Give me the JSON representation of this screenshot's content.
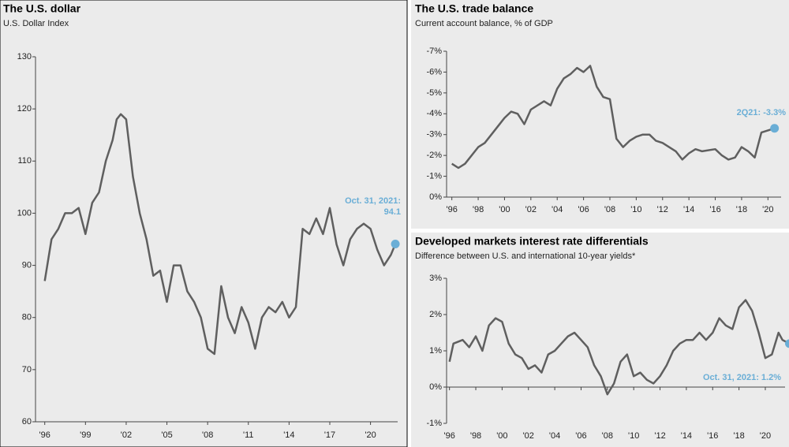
{
  "chart_data": [
    {
      "type": "line",
      "title": "The U.S. dollar",
      "subtitle": "U.S. Dollar Index",
      "x": [
        1996,
        1996.5,
        1997,
        1997.5,
        1998,
        1998.5,
        1999,
        1999.5,
        2000,
        2000.5,
        2001,
        2001.3,
        2001.6,
        2002,
        2002.5,
        2003,
        2003.5,
        2004,
        2004.5,
        2005,
        2005.5,
        2006,
        2006.5,
        2007,
        2007.5,
        2008,
        2008.5,
        2009,
        2009.5,
        2010,
        2010.5,
        2011,
        2011.5,
        2012,
        2012.5,
        2013,
        2013.5,
        2014,
        2014.5,
        2015,
        2015.5,
        2016,
        2016.5,
        2017,
        2017.5,
        2018,
        2018.5,
        2019,
        2019.5,
        2020,
        2020.5,
        2021,
        2021.5,
        2021.83
      ],
      "series": [
        {
          "name": "U.S. Dollar Index",
          "color": "#5f5f5f",
          "values": [
            87,
            95,
            97,
            100,
            100,
            101,
            96,
            102,
            104,
            110,
            114,
            118,
            119,
            118,
            107,
            100,
            95,
            88,
            89,
            83,
            90,
            90,
            85,
            83,
            80,
            74,
            73,
            86,
            80,
            77,
            82,
            79,
            74,
            80,
            82,
            81,
            83,
            80,
            82,
            97,
            96,
            99,
            96,
            101,
            94,
            90,
            95,
            97,
            98,
            97,
            93,
            90,
            92,
            94.1
          ]
        }
      ],
      "annotation": [
        "Oct. 31, 2021:",
        "94.1"
      ],
      "marker_color": "#6aaed6",
      "xlim": [
        1995.9,
        2022
      ],
      "xticks": [
        {
          "value": 1996,
          "label": "'96"
        },
        {
          "value": 1999,
          "label": "'99"
        },
        {
          "value": 2002,
          "label": "'02"
        },
        {
          "value": 2005,
          "label": "'05"
        },
        {
          "value": 2008,
          "label": "'08"
        },
        {
          "value": 2011,
          "label": "'11"
        },
        {
          "value": 2014,
          "label": "'14"
        },
        {
          "value": 2017,
          "label": "'17"
        },
        {
          "value": 2020,
          "label": "'20"
        }
      ],
      "ylim": [
        60,
        130
      ],
      "yticks": [
        60,
        70,
        80,
        90,
        100,
        110,
        120,
        130
      ]
    },
    {
      "type": "line",
      "title": "The U.S. trade balance",
      "subtitle": "Current account balance, % of GDP",
      "x": [
        1996,
        1996.5,
        1997,
        1998,
        1998.5,
        1999,
        2000,
        2000.5,
        2001,
        2001.5,
        2002,
        2003,
        2003.5,
        2004,
        2004.5,
        2005,
        2005.5,
        2006,
        2006.5,
        2007,
        2007.5,
        2008,
        2008.5,
        2009,
        2009.5,
        2010,
        2010.5,
        2011,
        2011.5,
        2012,
        2013,
        2013.5,
        2014,
        2014.5,
        2015,
        2016,
        2016.5,
        2017,
        2017.5,
        2018,
        2018.5,
        2019,
        2019.5,
        2020,
        2020.5
      ],
      "series": [
        {
          "name": "Current account balance",
          "color": "#5f5f5f",
          "values": [
            -1.6,
            -1.4,
            -1.6,
            -2.4,
            -2.6,
            -3.0,
            -3.8,
            -4.1,
            -4.0,
            -3.5,
            -4.2,
            -4.6,
            -4.4,
            -5.2,
            -5.7,
            -5.9,
            -6.2,
            -6.0,
            -6.3,
            -5.3,
            -4.8,
            -4.7,
            -2.8,
            -2.4,
            -2.7,
            -2.9,
            -3.0,
            -3.0,
            -2.7,
            -2.6,
            -2.2,
            -1.8,
            -2.1,
            -2.3,
            -2.2,
            -2.3,
            -2.0,
            -1.8,
            -1.9,
            -2.4,
            -2.2,
            -1.9,
            -3.1,
            -3.2,
            -3.3
          ]
        }
      ],
      "annotation": [
        "2Q21: -3.3%"
      ],
      "marker_color": "#6aaed6",
      "xlim": [
        1995.6,
        2021
      ],
      "xticks": [
        {
          "value": 1996,
          "label": "'96"
        },
        {
          "value": 1998,
          "label": "'98"
        },
        {
          "value": 2000,
          "label": "'00"
        },
        {
          "value": 2002,
          "label": "'02"
        },
        {
          "value": 2004,
          "label": "'04"
        },
        {
          "value": 2006,
          "label": "'06"
        },
        {
          "value": 2008,
          "label": "'08"
        },
        {
          "value": 2010,
          "label": "'10"
        },
        {
          "value": 2012,
          "label": "'12"
        },
        {
          "value": 2014,
          "label": "'14"
        },
        {
          "value": 2016,
          "label": "'16"
        },
        {
          "value": 2018,
          "label": "'18"
        },
        {
          "value": 2020,
          "label": "'20"
        }
      ],
      "ylim": [
        0,
        -7
      ],
      "yticks": [
        {
          "value": 0,
          "label": "0%"
        },
        {
          "value": -1,
          "label": "-1%"
        },
        {
          "value": -2,
          "label": "-2%"
        },
        {
          "value": -3,
          "label": "-3%"
        },
        {
          "value": -4,
          "label": "-4%"
        },
        {
          "value": -5,
          "label": "-5%"
        },
        {
          "value": -6,
          "label": "-6%"
        },
        {
          "value": -7,
          "label": "-7%"
        }
      ]
    },
    {
      "type": "line",
      "title": "Developed markets interest rate differentials",
      "subtitle": "Difference between U.S. and international 10-year yields*",
      "x": [
        1996,
        1996.3,
        1997,
        1997.5,
        1998,
        1998.5,
        1999,
        1999.5,
        2000,
        2000.5,
        2001,
        2001.5,
        2002,
        2002.5,
        2003,
        2003.5,
        2004,
        2004.5,
        2005,
        2005.5,
        2006,
        2006.5,
        2007,
        2007.5,
        2008,
        2008.5,
        2009,
        2009.5,
        2010,
        2010.5,
        2011,
        2011.5,
        2012,
        2012.5,
        2013,
        2013.5,
        2014,
        2014.5,
        2015,
        2015.5,
        2016,
        2016.5,
        2017,
        2017.5,
        2018,
        2018.5,
        2019,
        2019.5,
        2020,
        2020.5,
        2021,
        2021.3,
        2021.83
      ],
      "series": [
        {
          "name": "U.S. minus international 10-year yields",
          "color": "#5f5f5f",
          "values": [
            0.7,
            1.2,
            1.3,
            1.1,
            1.4,
            1.0,
            1.7,
            1.9,
            1.8,
            1.2,
            0.9,
            0.8,
            0.5,
            0.6,
            0.4,
            0.9,
            1.0,
            1.2,
            1.4,
            1.5,
            1.3,
            1.1,
            0.6,
            0.3,
            -0.2,
            0.1,
            0.7,
            0.9,
            0.3,
            0.4,
            0.2,
            0.1,
            0.3,
            0.6,
            1.0,
            1.2,
            1.3,
            1.3,
            1.5,
            1.3,
            1.5,
            1.9,
            1.7,
            1.6,
            2.2,
            2.4,
            2.1,
            1.5,
            0.8,
            0.9,
            1.5,
            1.3,
            1.2
          ]
        }
      ],
      "annotation": [
        "Oct. 31, 2021: 1.2%"
      ],
      "marker_color": "#6aaed6",
      "xlim": [
        1995.6,
        2021.5
      ],
      "xticks": [
        {
          "value": 1996,
          "label": "'96"
        },
        {
          "value": 1998,
          "label": "'98"
        },
        {
          "value": 2000,
          "label": "'00"
        },
        {
          "value": 2002,
          "label": "'02"
        },
        {
          "value": 2004,
          "label": "'04"
        },
        {
          "value": 2006,
          "label": "'06"
        },
        {
          "value": 2008,
          "label": "'08"
        },
        {
          "value": 2010,
          "label": "'10"
        },
        {
          "value": 2012,
          "label": "'12"
        },
        {
          "value": 2014,
          "label": "'14"
        },
        {
          "value": 2016,
          "label": "'16"
        },
        {
          "value": 2018,
          "label": "'18"
        },
        {
          "value": 2020,
          "label": "'20"
        }
      ],
      "ylim": [
        -1,
        3
      ],
      "yticks": [
        {
          "value": -1,
          "label": "-1%"
        },
        {
          "value": 0,
          "label": "0%"
        },
        {
          "value": 1,
          "label": "1%"
        },
        {
          "value": 2,
          "label": "2%"
        },
        {
          "value": 3,
          "label": "3%"
        }
      ]
    }
  ]
}
